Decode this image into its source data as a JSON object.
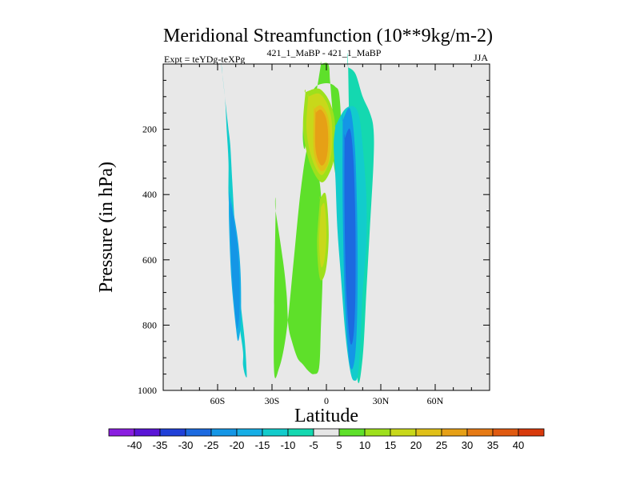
{
  "chart_data": {
    "type": "contour",
    "title": "Meridional Streamfunction (10**9kg/m-2)",
    "left_subtitle": "Expt = teYDg-teXPg",
    "center_subtitle": "421_1_MaBP - 421_1_MaBP",
    "right_subtitle": "JJA",
    "xlabel": "Latitude",
    "ylabel": "Pressure (in hPa)",
    "xlim": [
      -90,
      90
    ],
    "ylim": [
      1000,
      0
    ],
    "x_ticks": [
      {
        "value": -60,
        "label": "60S"
      },
      {
        "value": -30,
        "label": "30S"
      },
      {
        "value": 0,
        "label": "0"
      },
      {
        "value": 30,
        "label": "30N"
      },
      {
        "value": 60,
        "label": "60N"
      }
    ],
    "y_ticks": [
      {
        "value": 200,
        "label": "200"
      },
      {
        "value": 400,
        "label": "400"
      },
      {
        "value": 600,
        "label": "600"
      },
      {
        "value": 800,
        "label": "800"
      },
      {
        "value": 1000,
        "label": "1000"
      }
    ],
    "levels": [
      -40,
      -35,
      -30,
      -25,
      -20,
      -15,
      -10,
      -5,
      5,
      10,
      15,
      20,
      25,
      30,
      35,
      40
    ],
    "level_labels": [
      "-40",
      "-35",
      "-30",
      "-25",
      "-20",
      "-15",
      "-10",
      "-5",
      "5",
      "10",
      "15",
      "20",
      "25",
      "30",
      "35",
      "40"
    ],
    "colors": [
      "#8a1ee0",
      "#5a14d6",
      "#2040d8",
      "#1c6ae0",
      "#1496e6",
      "#16aee6",
      "#12cccc",
      "#14d8b0",
      "#e6e6e6",
      "#5ee02a",
      "#9ee01c",
      "#c8d81a",
      "#e0c018",
      "#e6a016",
      "#e67a14",
      "#e05a10",
      "#d83a0c"
    ],
    "background_color": "#e8e8e8",
    "regions": [
      {
        "name": "sh-negative-cell",
        "level": -10,
        "lat": [
          -58,
          -56,
          -55,
          -54,
          -54,
          -53,
          -52,
          -50,
          -48,
          -46,
          -46,
          -45,
          -44,
          -44,
          -45,
          -47,
          -49,
          -50,
          -51,
          -52,
          -53,
          -54,
          -55,
          -56,
          -57,
          -57.5,
          -58,
          -58.5,
          -58.5,
          -58
        ],
        "pres": [
          0,
          100,
          200,
          300,
          400,
          500,
          600,
          700,
          800,
          880,
          920,
          950,
          960,
          940,
          850,
          750,
          650,
          550,
          450,
          350,
          250,
          200,
          150,
          100,
          50,
          20,
          0,
          0,
          0,
          0
        ]
      },
      {
        "name": "sh-negative-core",
        "level": -20,
        "lat": [
          -53,
          -51,
          -49,
          -48,
          -48,
          -49,
          -50,
          -52,
          -53,
          -53
        ],
        "pres": [
          420,
          480,
          560,
          650,
          760,
          810,
          780,
          650,
          500,
          420
        ]
      },
      {
        "name": "tropical-positive-lower",
        "level": 5,
        "lat": [
          -28,
          -24,
          -22,
          -21,
          -19,
          -16,
          -13,
          -10,
          -7,
          -4,
          -3,
          -2,
          -3,
          -6,
          -10,
          -14,
          -18,
          -22,
          -26,
          -29,
          -28
        ],
        "pres": [
          450,
          600,
          700,
          800,
          850,
          900,
          920,
          940,
          950,
          930,
          800,
          600,
          400,
          300,
          250,
          380,
          600,
          820,
          930,
          920,
          450
        ]
      },
      {
        "name": "upper-positive-column",
        "level": 5,
        "lat": [
          -3,
          1,
          2,
          3,
          4,
          4,
          6,
          7,
          8,
          7,
          5,
          2,
          -2,
          -6,
          -9,
          -12,
          -13,
          -12,
          -10,
          -6,
          -3
        ],
        "pres": [
          0,
          0,
          50,
          120,
          200,
          300,
          350,
          280,
          180,
          90,
          70,
          60,
          60,
          70,
          100,
          150,
          220,
          260,
          200,
          100,
          0
        ]
      },
      {
        "name": "upper-positive-15",
        "level": 15,
        "lat": [
          -10,
          -5,
          -2,
          1,
          3,
          3,
          1,
          -3,
          -8,
          -11,
          -10
        ],
        "pres": [
          100,
          90,
          100,
          130,
          180,
          260,
          310,
          340,
          290,
          200,
          100
        ]
      },
      {
        "name": "upper-positive-25",
        "level": 25,
        "lat": [
          -6,
          -3,
          0,
          1,
          0,
          -3,
          -6,
          -6
        ],
        "pres": [
          150,
          140,
          170,
          230,
          290,
          310,
          260,
          150
        ]
      },
      {
        "name": "lower-positive-15",
        "level": 15,
        "lat": [
          -3,
          -1,
          0,
          -1,
          -3,
          -4,
          -3
        ],
        "pres": [
          440,
          430,
          520,
          600,
          620,
          540,
          440
        ]
      },
      {
        "name": "nh-negative-cell",
        "level": -10,
        "lat": [
          5,
          10,
          15,
          18,
          20,
          22,
          22,
          20,
          19,
          18,
          17,
          16,
          14,
          12,
          10,
          8,
          6,
          5,
          4,
          5
        ],
        "pres": [
          190,
          140,
          130,
          160,
          250,
          400,
          550,
          700,
          820,
          920,
          960,
          970,
          960,
          900,
          800,
          650,
          500,
          350,
          250,
          190
        ]
      },
      {
        "name": "nh-negative-core",
        "level": -25,
        "lat": [
          10,
          13,
          15,
          16,
          16,
          15,
          13,
          11,
          10,
          10
        ],
        "pres": [
          230,
          200,
          300,
          500,
          700,
          830,
          850,
          700,
          450,
          230
        ]
      },
      {
        "name": "nh-negative-outer",
        "level": -5,
        "lat": [
          12,
          16,
          20,
          24,
          26,
          26,
          24,
          22,
          20,
          17,
          14,
          12
        ],
        "pres": [
          10,
          30,
          100,
          150,
          200,
          300,
          500,
          700,
          900,
          960,
          600,
          10
        ]
      }
    ]
  },
  "tick_labels": {
    "x": [
      "60S",
      "30S",
      "0",
      "30N",
      "60N"
    ],
    "y": [
      "200",
      "400",
      "600",
      "800",
      "1000"
    ]
  }
}
